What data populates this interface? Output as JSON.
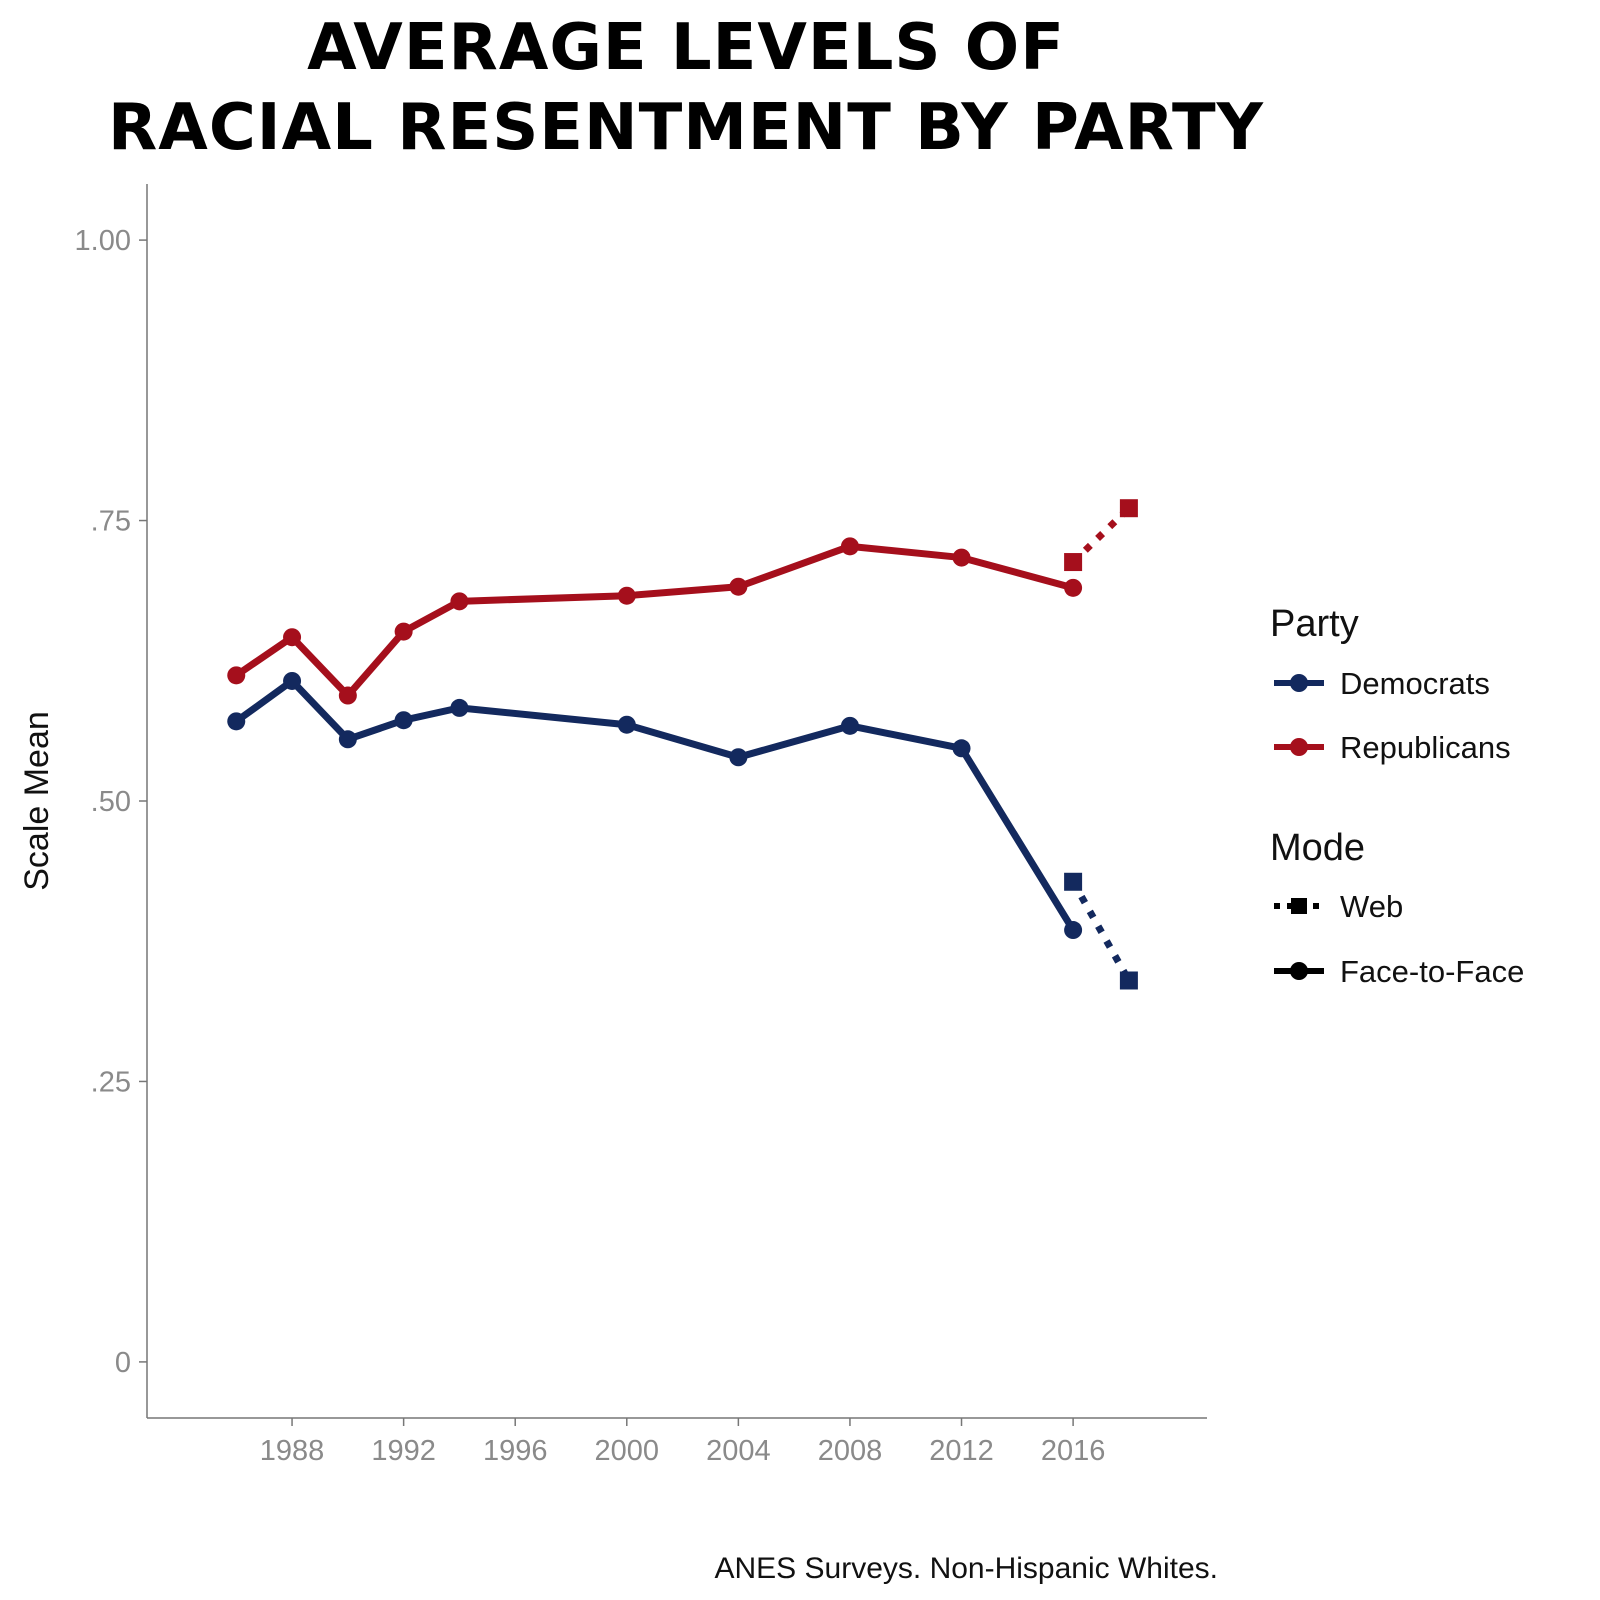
{
  "chart_data": {
    "type": "line",
    "title_lines": [
      "AVERAGE LEVELS OF",
      "RACIAL RESENTMENT BY PARTY"
    ],
    "ylabel": "Scale Mean",
    "xlabel": "",
    "caption": "ANES Surveys. Non-Hispanic Whites.",
    "ylim": [
      -0.05,
      1.05
    ],
    "xlim": [
      1982.8,
      2020.8
    ],
    "y_ticks": [
      {
        "value": 0,
        "label": "0"
      },
      {
        "value": 0.25,
        "label": ".25"
      },
      {
        "value": 0.5,
        "label": ".50"
      },
      {
        "value": 0.75,
        "label": ".75"
      },
      {
        "value": 1.0,
        "label": "1.00"
      }
    ],
    "x_ticks": [
      {
        "value": 1988,
        "label": "1988"
      },
      {
        "value": 1992,
        "label": "1992"
      },
      {
        "value": 1996,
        "label": "1996"
      },
      {
        "value": 2000,
        "label": "2000"
      },
      {
        "value": 2004,
        "label": "2004"
      },
      {
        "value": 2008,
        "label": "2008"
      },
      {
        "value": 2012,
        "label": "2012"
      },
      {
        "value": 2016,
        "label": "2016"
      }
    ],
    "grid": false,
    "legend_placement": "right",
    "legend": {
      "party_title": "Party",
      "party_items": [
        {
          "label": "Democrats",
          "color": "#13295e"
        },
        {
          "label": "Republicans",
          "color": "#a50f1c"
        }
      ],
      "mode_title": "Mode",
      "mode_items": [
        {
          "label": "Web",
          "style": "dotted-square"
        },
        {
          "label": "Face-to-Face",
          "style": "solid-circle"
        }
      ]
    },
    "series": [
      {
        "name": "Democrats",
        "mode": "Face-to-Face",
        "color": "#13295e",
        "x": [
          1986,
          1988,
          1990,
          1992,
          1994,
          2000,
          2004,
          2008,
          2012,
          2016
        ],
        "y": [
          0.571,
          0.607,
          0.555,
          0.572,
          0.583,
          0.568,
          0.539,
          0.567,
          0.547,
          0.385
        ]
      },
      {
        "name": "Republicans",
        "mode": "Face-to-Face",
        "color": "#a50f1c",
        "x": [
          1986,
          1988,
          1990,
          1992,
          1994,
          2000,
          2004,
          2008,
          2012,
          2016
        ],
        "y": [
          0.612,
          0.646,
          0.594,
          0.651,
          0.678,
          0.683,
          0.691,
          0.727,
          0.717,
          0.69
        ]
      },
      {
        "name": "Democrats",
        "mode": "Web",
        "color": "#13295e",
        "x": [
          2016,
          2018
        ],
        "y": [
          0.428,
          0.34
        ]
      },
      {
        "name": "Republicans",
        "mode": "Web",
        "color": "#a50f1c",
        "x": [
          2016,
          2018
        ],
        "y": [
          0.713,
          0.761
        ]
      }
    ]
  }
}
